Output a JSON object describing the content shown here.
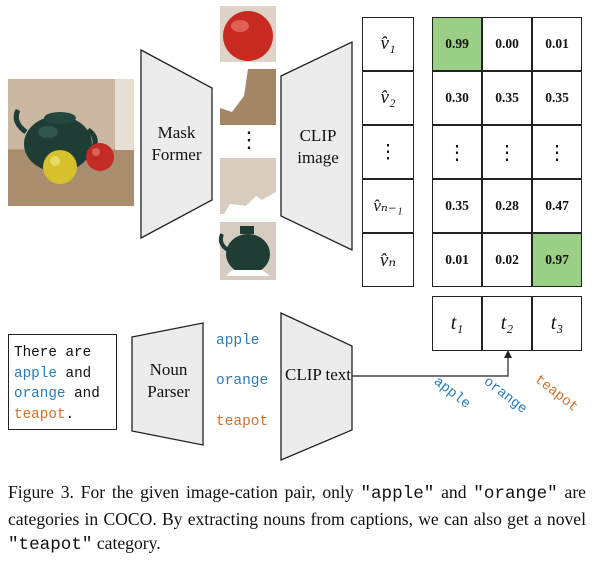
{
  "modules": {
    "maskformer": "Mask Former",
    "clip_image": "CLIP image",
    "noun_parser": "Noun Parser",
    "clip_text": "CLIP text"
  },
  "mask_embeddings": [
    "v̂₁",
    "v̂₂",
    "⋮",
    "v̂ₙ₋₁",
    "v̂ₙ"
  ],
  "text_embeddings": [
    "t₁",
    "t₂",
    "t₃"
  ],
  "similarity": {
    "rows": [
      [
        "0.99",
        "0.00",
        "0.01"
      ],
      [
        "0.30",
        "0.35",
        "0.35"
      ],
      [
        "⋮",
        "⋮",
        "⋮"
      ],
      [
        "0.35",
        "0.28",
        "0.47"
      ],
      [
        "0.01",
        "0.02",
        "0.97"
      ]
    ],
    "highlight_color": "#9bcf86"
  },
  "input_caption": {
    "line1": "There are",
    "w_apple": "apple",
    "and1": " and",
    "w_orange": "orange",
    "and2": " and",
    "w_teapot": "teapot",
    "period": "."
  },
  "nouns": [
    "apple",
    "orange",
    "teapot"
  ],
  "rotated_labels": [
    "apple",
    "orange",
    "teapot"
  ],
  "vertical_dots": "⋮",
  "caption": {
    "part1": "Figure 3.  For the given image-cation pair, only ",
    "q_apple": "\"apple\"",
    "part2": " and ",
    "q_orange": "\"orange\"",
    "part3": " are categories in COCO. By extracting nouns from captions, we can also get a novel ",
    "q_teapot": "\"teapot\"",
    "part4": " category."
  },
  "colors": {
    "blue": "#2b7bbb",
    "orange": "#d0702a",
    "module_fill": "#ececec"
  }
}
